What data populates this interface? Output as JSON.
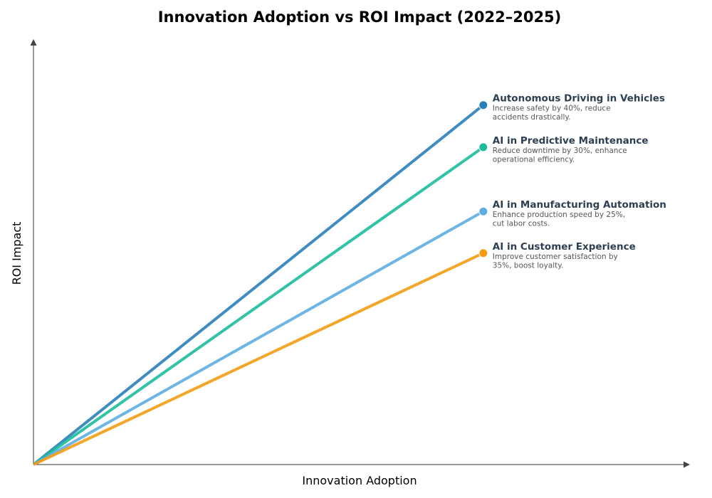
{
  "chart_data": {
    "type": "line",
    "title": "Innovation Adoption vs ROI Impact (2022–2025)",
    "xlabel": "Innovation Adoption",
    "ylabel": "ROI Impact",
    "xlim": [
      0,
      1
    ],
    "ylim": [
      0,
      1
    ],
    "grid": false,
    "ticks": false,
    "series": [
      {
        "name": "Autonomous Driving in Vehicles",
        "description": [
          "Increase safety by 40%, reduce",
          "accidents drastically."
        ],
        "color": "#2980b9",
        "x": [
          0,
          0.686
        ],
        "y": [
          0,
          0.845
        ]
      },
      {
        "name": "AI in Predictive Maintenance",
        "description": [
          "Reduce downtime by 30%, enhance",
          "operational efficiency."
        ],
        "color": "#1abc9c",
        "x": [
          0,
          0.686
        ],
        "y": [
          0,
          0.746
        ]
      },
      {
        "name": "AI in Manufacturing Automation",
        "description": [
          "Enhance production speed by 25%,",
          "cut labor costs."
        ],
        "color": "#5dade2",
        "x": [
          0,
          0.686
        ],
        "y": [
          0,
          0.595
        ]
      },
      {
        "name": "AI in Customer Experience",
        "description": [
          "Improve customer satisfaction by",
          "35%, boost loyalty."
        ],
        "color": "#f39c12",
        "x": [
          0,
          0.686
        ],
        "y": [
          0,
          0.497
        ]
      }
    ]
  }
}
